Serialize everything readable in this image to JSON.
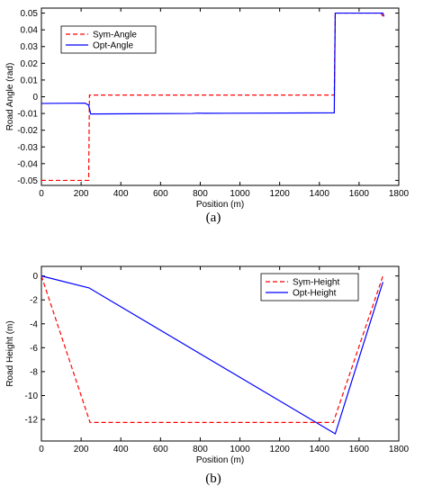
{
  "chart_data": [
    {
      "type": "line",
      "caption": "(a)",
      "xlabel": "Position (m)",
      "ylabel": "Road Angle (rad)",
      "xlim": [
        0,
        1800
      ],
      "ylim": [
        -0.053,
        0.053
      ],
      "xticks": [
        0,
        200,
        400,
        600,
        800,
        1000,
        1200,
        1400,
        1600,
        1800
      ],
      "xtick_labels": [
        "0",
        "200",
        "400",
        "600",
        "800",
        "1000",
        "1200",
        "1400",
        "1600",
        "1800"
      ],
      "yticks": [
        -0.05,
        -0.04,
        -0.03,
        -0.02,
        -0.01,
        0,
        0.01,
        0.02,
        0.03,
        0.04,
        0.05
      ],
      "ytick_labels": [
        "-0.05",
        "-0.04",
        "-0.03",
        "-0.02",
        "-0.01",
        "0",
        "0.01",
        "0.02",
        "0.03",
        "0.04",
        "0.05"
      ],
      "grid": false,
      "legend_position": "top-left",
      "series": [
        {
          "name": "Sym-Angle",
          "color": "#ff0000",
          "dash": "dashed",
          "x": [
            0,
            238,
            242,
            1475,
            1480,
            1710,
            1720
          ],
          "y": [
            -0.05,
            -0.05,
            0.001,
            0.001,
            0.05,
            0.05,
            0.048
          ]
        },
        {
          "name": "Opt-Angle",
          "color": "#0000ff",
          "dash": "solid",
          "x": [
            0,
            220,
            238,
            248,
            760,
            790,
            820,
            1475,
            1480,
            1720,
            1725
          ],
          "y": [
            -0.004,
            -0.0038,
            -0.005,
            -0.0103,
            -0.01,
            -0.0098,
            -0.0099,
            -0.0096,
            0.05,
            0.05,
            0.048
          ]
        }
      ]
    },
    {
      "type": "line",
      "caption": "(b)",
      "xlabel": "Position (m)",
      "ylabel": "Road Height (m)",
      "xlim": [
        0,
        1800
      ],
      "ylim": [
        -13.8,
        0.8
      ],
      "xticks": [
        0,
        200,
        400,
        600,
        800,
        1000,
        1200,
        1400,
        1600,
        1800
      ],
      "xtick_labels": [
        "0",
        "200",
        "400",
        "600",
        "800",
        "1000",
        "1200",
        "1400",
        "1600",
        "1800"
      ],
      "yticks": [
        -12,
        -10,
        -8,
        -6,
        -4,
        -2,
        0
      ],
      "ytick_labels": [
        "-12",
        "-10",
        "-8",
        "-6",
        "-4",
        "-2",
        "0"
      ],
      "grid": false,
      "legend_position": "top-right",
      "series": [
        {
          "name": "Sym-Height",
          "color": "#ff0000",
          "dash": "dashed",
          "x": [
            0,
            245,
            1470,
            1720
          ],
          "y": [
            0,
            -12.25,
            -12.25,
            0
          ]
        },
        {
          "name": "Opt-Height",
          "color": "#0000ff",
          "dash": "solid",
          "x": [
            0,
            240,
            1480,
            1720
          ],
          "y": [
            0,
            -1.0,
            -13.2,
            -0.5
          ]
        }
      ]
    }
  ]
}
